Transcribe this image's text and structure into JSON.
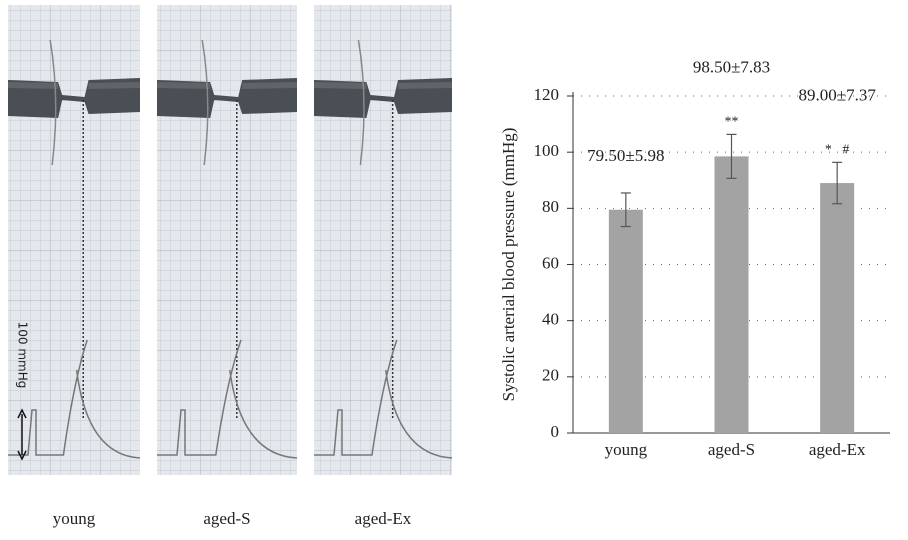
{
  "recordings": {
    "labels": [
      "young",
      "aged-S",
      "aged-Ex"
    ],
    "scale_label": "100 mmHg"
  },
  "chart_data": {
    "type": "bar",
    "y_label": "Systolic arterial blood pressure (mmHg)",
    "categories": [
      "young",
      "aged-S",
      "aged-Ex"
    ],
    "values": [
      79.5,
      98.5,
      89.0
    ],
    "errors": [
      5.98,
      7.83,
      7.37
    ],
    "value_labels": [
      "79.50±5.98",
      "98.50±7.83",
      "89.00±7.37"
    ],
    "significance": [
      null,
      "**",
      "*   #"
    ],
    "color": "#a3a3a3",
    "ylim": [
      0,
      120
    ],
    "yticks": [
      0,
      20,
      40,
      60,
      80,
      100,
      120
    ],
    "grid": true
  }
}
